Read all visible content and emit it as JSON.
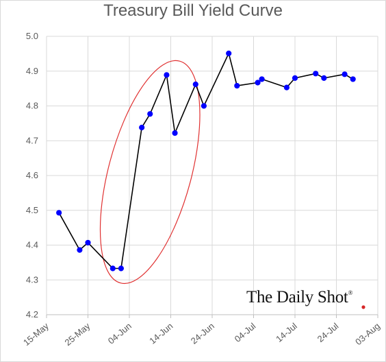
{
  "chart_data": {
    "type": "line",
    "title": "Treasury Bill Yield Curve",
    "xlabel": "",
    "ylabel": "",
    "ylim": [
      4.2,
      5.0
    ],
    "y_ticks": [
      "4.2",
      "4.3",
      "4.4",
      "4.5",
      "4.6",
      "4.7",
      "4.8",
      "4.9",
      "5.0"
    ],
    "x_ticks": [
      "15-May",
      "25-May",
      "04-Jun",
      "14-Jun",
      "24-Jun",
      "04-Jul",
      "14-Jul",
      "24-Jul",
      "03-Aug"
    ],
    "x_tick_dates": [
      "2023-05-15",
      "2023-05-25",
      "2023-06-04",
      "2023-06-14",
      "2023-06-24",
      "2023-07-04",
      "2023-07-14",
      "2023-07-24",
      "2023-08-03"
    ],
    "grid": true,
    "series": [
      {
        "color": "#000000",
        "marker_color": "#0000ff",
        "points": [
          {
            "x": "2023-05-18",
            "y": 4.493
          },
          {
            "x": "2023-05-23",
            "y": 4.386
          },
          {
            "x": "2023-05-25",
            "y": 4.407
          },
          {
            "x": "2023-05-31",
            "y": 4.333
          },
          {
            "x": "2023-06-02",
            "y": 4.333
          },
          {
            "x": "2023-06-07",
            "y": 4.738
          },
          {
            "x": "2023-06-09",
            "y": 4.777
          },
          {
            "x": "2023-06-13",
            "y": 4.889
          },
          {
            "x": "2023-06-15",
            "y": 4.722
          },
          {
            "x": "2023-06-20",
            "y": 4.862
          },
          {
            "x": "2023-06-22",
            "y": 4.8
          },
          {
            "x": "2023-06-28",
            "y": 4.951
          },
          {
            "x": "2023-06-30",
            "y": 4.858
          },
          {
            "x": "2023-07-05",
            "y": 4.867
          },
          {
            "x": "2023-07-06",
            "y": 4.877
          },
          {
            "x": "2023-07-12",
            "y": 4.853
          },
          {
            "x": "2023-07-14",
            "y": 4.88
          },
          {
            "x": "2023-07-19",
            "y": 4.893
          },
          {
            "x": "2023-07-21",
            "y": 4.88
          },
          {
            "x": "2023-07-26",
            "y": 4.891
          },
          {
            "x": "2023-07-28",
            "y": 4.877
          }
        ]
      }
    ],
    "annotation": {
      "shape": "ellipse",
      "color": "#e03030",
      "x_range": [
        "2023-05-30",
        "2023-06-19"
      ],
      "y_range": [
        4.28,
        4.94
      ]
    }
  },
  "watermark": {
    "text": "The Daily Shot",
    "mark": "®",
    "dot_color": "#d62728"
  }
}
